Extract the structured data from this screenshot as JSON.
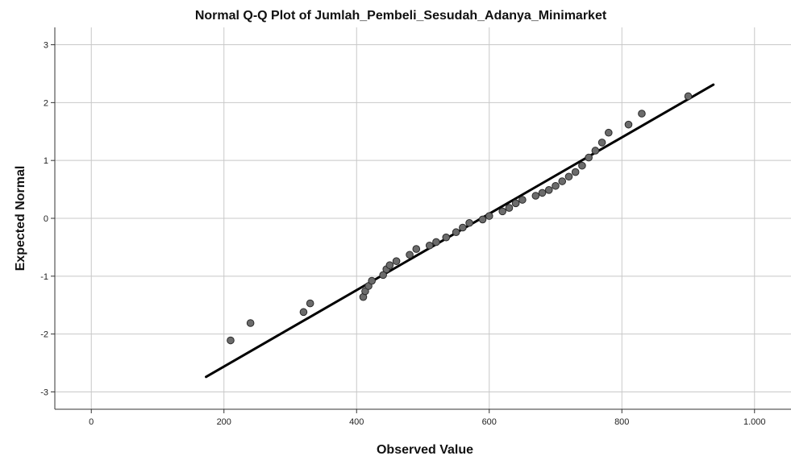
{
  "chart_data": {
    "type": "scatter",
    "title": "Normal Q-Q Plot of Jumlah_Pembeli_Sesudah_Adanya_Minimarket",
    "xlabel": "Observed Value",
    "ylabel": "Expected Normal",
    "xlim": [
      -55,
      1055
    ],
    "ylim": [
      -3.3,
      3.3
    ],
    "x_ticks": [
      0,
      200,
      400,
      600,
      800,
      1000
    ],
    "x_tick_labels": [
      "0",
      "200",
      "400",
      "600",
      "800",
      "1.000"
    ],
    "y_ticks": [
      3,
      2,
      1,
      0,
      -1,
      -2,
      -3
    ],
    "y_tick_labels": [
      "3",
      "2",
      "1",
      "0",
      "-1",
      "-2",
      "-3"
    ],
    "grid": true,
    "point_color": "#6b6b6b",
    "line_color": "#000000",
    "points": [
      [
        210,
        -2.11
      ],
      [
        240,
        -1.81
      ],
      [
        320,
        -1.62
      ],
      [
        330,
        -1.47
      ],
      [
        410,
        -1.36
      ],
      [
        413,
        -1.26
      ],
      [
        418,
        -1.17
      ],
      [
        423,
        -1.08
      ],
      [
        440,
        -0.98
      ],
      [
        445,
        -0.88
      ],
      [
        450,
        -0.81
      ],
      [
        460,
        -0.74
      ],
      [
        480,
        -0.63
      ],
      [
        490,
        -0.53
      ],
      [
        510,
        -0.47
      ],
      [
        520,
        -0.41
      ],
      [
        535,
        -0.33
      ],
      [
        550,
        -0.24
      ],
      [
        560,
        -0.16
      ],
      [
        570,
        -0.08
      ],
      [
        590,
        -0.02
      ],
      [
        600,
        0.04
      ],
      [
        620,
        0.12
      ],
      [
        630,
        0.18
      ],
      [
        640,
        0.26
      ],
      [
        650,
        0.32
      ],
      [
        670,
        0.39
      ],
      [
        680,
        0.44
      ],
      [
        690,
        0.49
      ],
      [
        700,
        0.56
      ],
      [
        710,
        0.64
      ],
      [
        720,
        0.72
      ],
      [
        730,
        0.8
      ],
      [
        740,
        0.91
      ],
      [
        750,
        1.05
      ],
      [
        760,
        1.17
      ],
      [
        770,
        1.31
      ],
      [
        780,
        1.48
      ],
      [
        810,
        1.62
      ],
      [
        830,
        1.81
      ],
      [
        900,
        2.11
      ]
    ],
    "reference_line": [
      [
        173,
        -2.74
      ],
      [
        938,
        2.31
      ]
    ]
  }
}
